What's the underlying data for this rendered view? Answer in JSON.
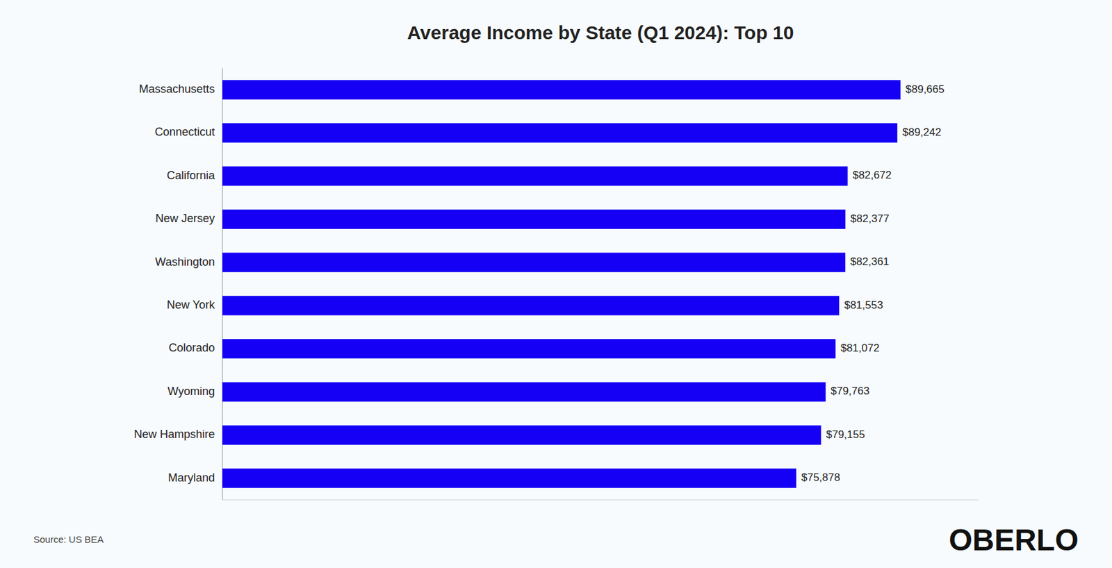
{
  "chart_data": {
    "type": "bar",
    "orientation": "horizontal",
    "title": "Average Income by State (Q1 2024): Top 10",
    "categories": [
      "Massachusetts",
      "Connecticut",
      "California",
      "New Jersey",
      "Washington",
      "New York",
      "Colorado",
      "Wyoming",
      "New Hampshire",
      "Maryland"
    ],
    "values": [
      89665,
      89242,
      82672,
      82377,
      82361,
      81553,
      81072,
      79763,
      79155,
      75878
    ],
    "value_labels": [
      "$89,665",
      "$89,242",
      "$82,672",
      "$82,377",
      "$82,361",
      "$81,553",
      "$81,072",
      "$79,763",
      "$79,155",
      "$75,878"
    ],
    "data_labels": true,
    "color": "#1500f5",
    "xlim": [
      0,
      100000
    ],
    "tick_labels": "y",
    "grid": false,
    "annotations": [
      "Source: US BEA",
      "OBERLO"
    ]
  }
}
